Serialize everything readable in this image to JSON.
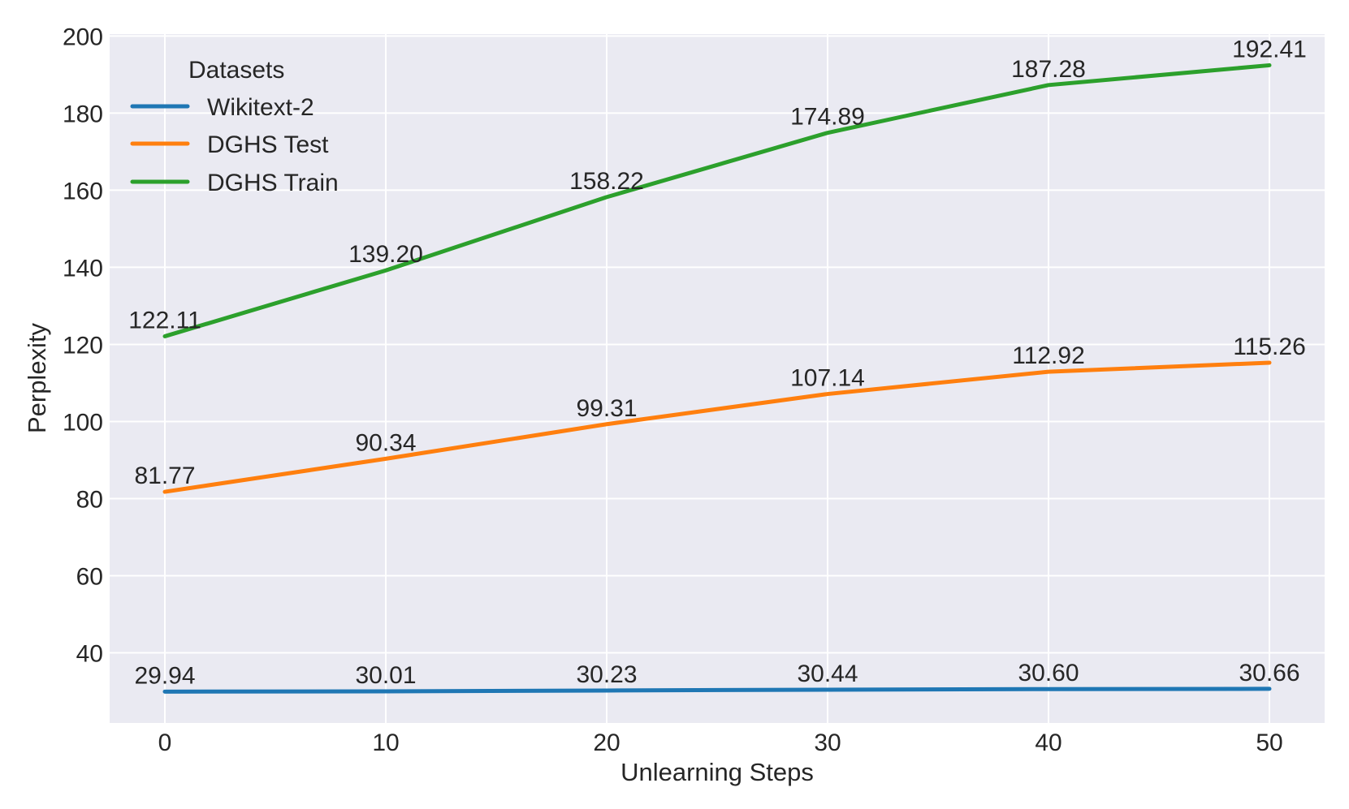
{
  "chart_data": {
    "type": "line",
    "title": "",
    "xlabel": "Unlearning Steps",
    "ylabel": "Perplexity",
    "x": [
      0,
      10,
      20,
      30,
      40,
      50
    ],
    "xlim": [
      -2.5,
      52.5
    ],
    "ylim": [
      21.8,
      200.5
    ],
    "xticks": [
      0,
      10,
      20,
      30,
      40,
      50
    ],
    "yticks": [
      40,
      60,
      80,
      100,
      120,
      140,
      160,
      180,
      200
    ],
    "grid": true,
    "legend": {
      "title": "Datasets",
      "placement": "top-left"
    },
    "series": [
      {
        "name": "Wikitext-2",
        "color": "#1f77b4",
        "values": [
          29.94,
          30.01,
          30.23,
          30.44,
          30.6,
          30.66
        ],
        "labels": [
          "29.94",
          "30.01",
          "30.23",
          "30.44",
          "30.60",
          "30.66"
        ]
      },
      {
        "name": "DGHS Test",
        "color": "#ff7f0e",
        "values": [
          81.77,
          90.34,
          99.31,
          107.14,
          112.92,
          115.26
        ],
        "labels": [
          "81.77",
          "90.34",
          "99.31",
          "107.14",
          "112.92",
          "115.26"
        ]
      },
      {
        "name": "DGHS Train",
        "color": "#2ca02c",
        "values": [
          122.11,
          139.2,
          158.22,
          174.89,
          187.28,
          192.41
        ],
        "labels": [
          "122.11",
          "139.20",
          "158.22",
          "174.89",
          "187.28",
          "192.41"
        ]
      }
    ],
    "colors": {
      "plot_background": "#eaeaf2",
      "grid": "#ffffff",
      "text": "#262626"
    }
  }
}
